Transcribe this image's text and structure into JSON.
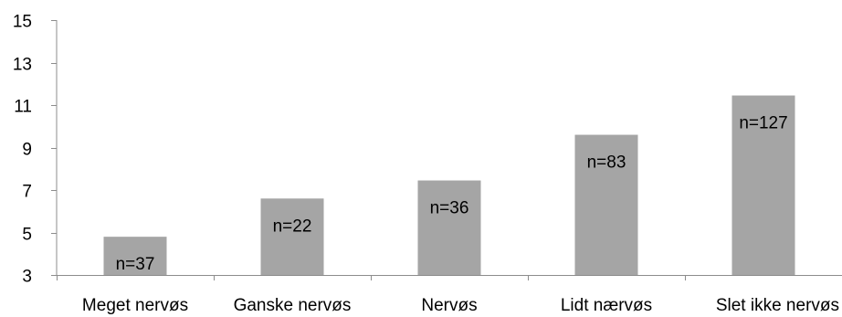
{
  "chart_data": {
    "type": "bar",
    "categories": [
      "Meget nervøs",
      "Ganske nervøs",
      "Nervøs",
      "Lidt nærvøs",
      "Slet ikke nervøs"
    ],
    "values": [
      4.8,
      6.6,
      7.45,
      9.6,
      11.45
    ],
    "data_labels": [
      "n=37",
      "n=22",
      "n=36",
      "n=83",
      "n=127"
    ],
    "ylim": [
      3,
      15
    ],
    "yticks": [
      3,
      5,
      7,
      9,
      11,
      13,
      15
    ],
    "grid": false,
    "legend": "none",
    "bar_color": "#a5a5a5",
    "axis_color": "#8c8c8c"
  }
}
